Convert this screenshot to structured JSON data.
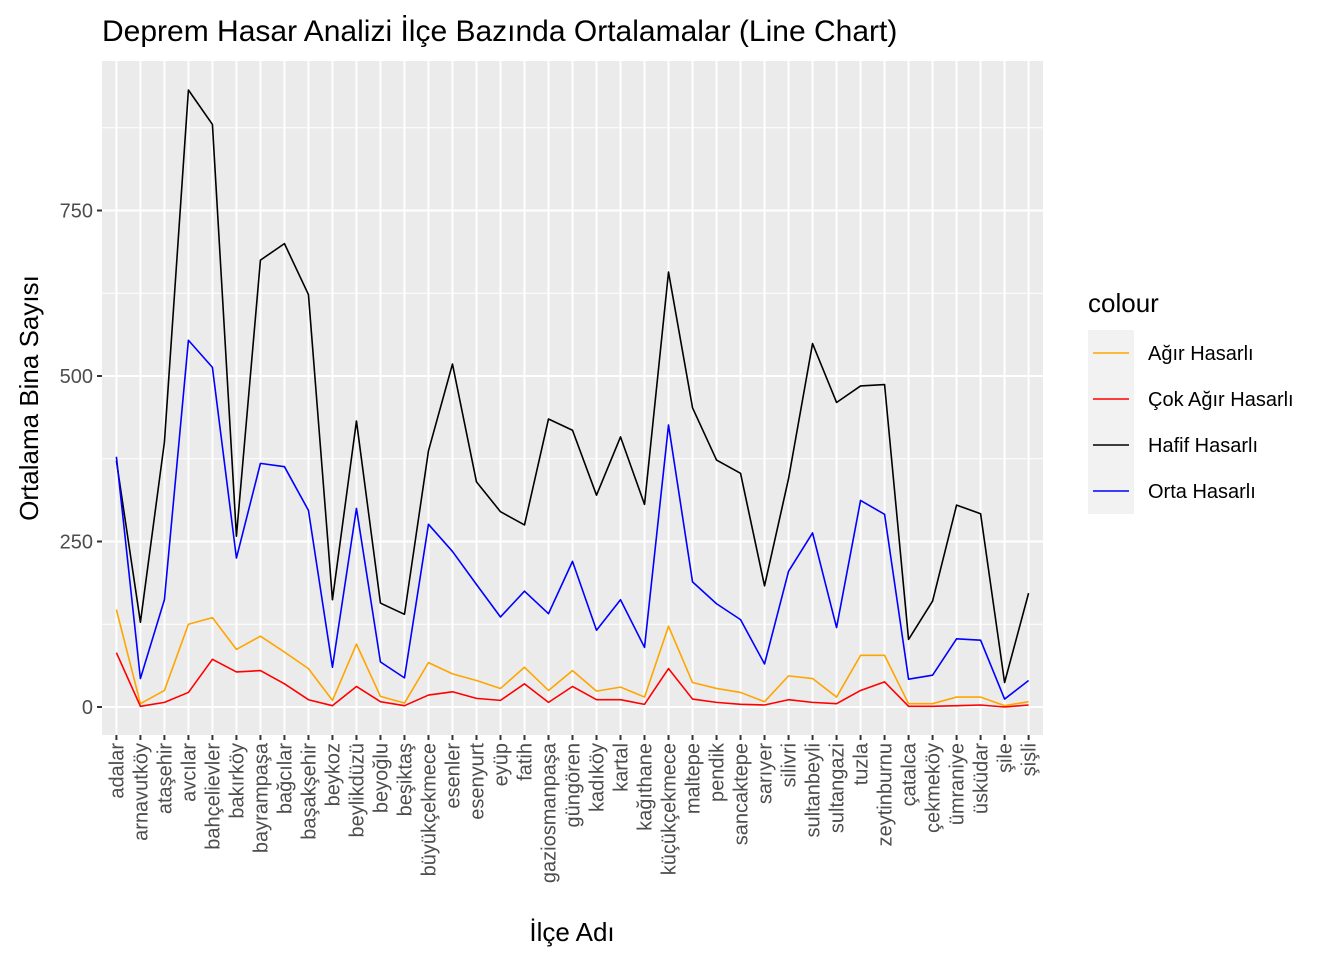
{
  "chart_data": {
    "type": "line",
    "title": "Deprem Hasar Analizi İlçe Bazında Ortalamalar (Line Chart)",
    "xlabel": "İlçe Adı",
    "ylabel": "Ortalama Bina Sayısı",
    "ylim": [
      -40,
      970
    ],
    "yticks": [
      0,
      250,
      500,
      750
    ],
    "grid": true,
    "legend_title": "colour",
    "legend_position": "right",
    "categories": [
      "adalar",
      "arnavutköy",
      "ataşehir",
      "avcılar",
      "bahçelievler",
      "bakırköy",
      "bayrampaşa",
      "bağcılar",
      "başakşehir",
      "beykoz",
      "beylikdüzü",
      "beyoğlu",
      "beşiktaş",
      "büyükçekmece",
      "esenler",
      "esenyurt",
      "eyüp",
      "fatih",
      "gaziosmanpaşa",
      "güngören",
      "kadıköy",
      "kartal",
      "kağıthane",
      "küçükçekmece",
      "maltepe",
      "pendik",
      "sancaktepe",
      "sarıyer",
      "silivri",
      "sultanbeyli",
      "sultangazi",
      "tuzla",
      "zeytinburnu",
      "çatalca",
      "çekmeköy",
      "ümraniye",
      "üsküdar",
      "şile",
      "şişli"
    ],
    "series": [
      {
        "name": "Ağır Hasarlı",
        "color": "#FFA500",
        "values": [
          147,
          5,
          25,
          125,
          135,
          87,
          107,
          83,
          58,
          10,
          95,
          16,
          6,
          67,
          50,
          40,
          28,
          60,
          25,
          55,
          24,
          30,
          15,
          122,
          37,
          28,
          22,
          8,
          47,
          43,
          15,
          78,
          78,
          5,
          5,
          15,
          15,
          2,
          8
        ]
      },
      {
        "name": "Çok Ağır Hasarlı",
        "color": "#FF0000",
        "values": [
          82,
          1,
          7,
          22,
          72,
          53,
          55,
          35,
          11,
          2,
          31,
          8,
          2,
          18,
          23,
          13,
          10,
          35,
          7,
          31,
          11,
          11,
          4,
          58,
          12,
          7,
          4,
          3,
          11,
          7,
          5,
          25,
          38,
          1,
          1,
          2,
          3,
          0,
          3
        ]
      },
      {
        "name": "Hafif Hasarlı",
        "color": "#000000",
        "values": [
          372,
          128,
          400,
          932,
          880,
          258,
          675,
          700,
          623,
          162,
          432,
          157,
          140,
          387,
          518,
          340,
          295,
          275,
          435,
          418,
          320,
          408,
          306,
          657,
          452,
          373,
          353,
          183,
          345,
          549,
          460,
          485,
          487,
          102,
          160,
          305,
          292,
          37,
          172
        ]
      },
      {
        "name": "Orta Hasarlı",
        "color": "#0000FF",
        "values": [
          378,
          43,
          162,
          554,
          513,
          225,
          368,
          363,
          297,
          60,
          300,
          68,
          44,
          276,
          235,
          185,
          136,
          175,
          141,
          220,
          116,
          162,
          90,
          426,
          189,
          156,
          132,
          65,
          205,
          263,
          120,
          312,
          291,
          42,
          48,
          103,
          101,
          12,
          40
        ]
      }
    ]
  }
}
